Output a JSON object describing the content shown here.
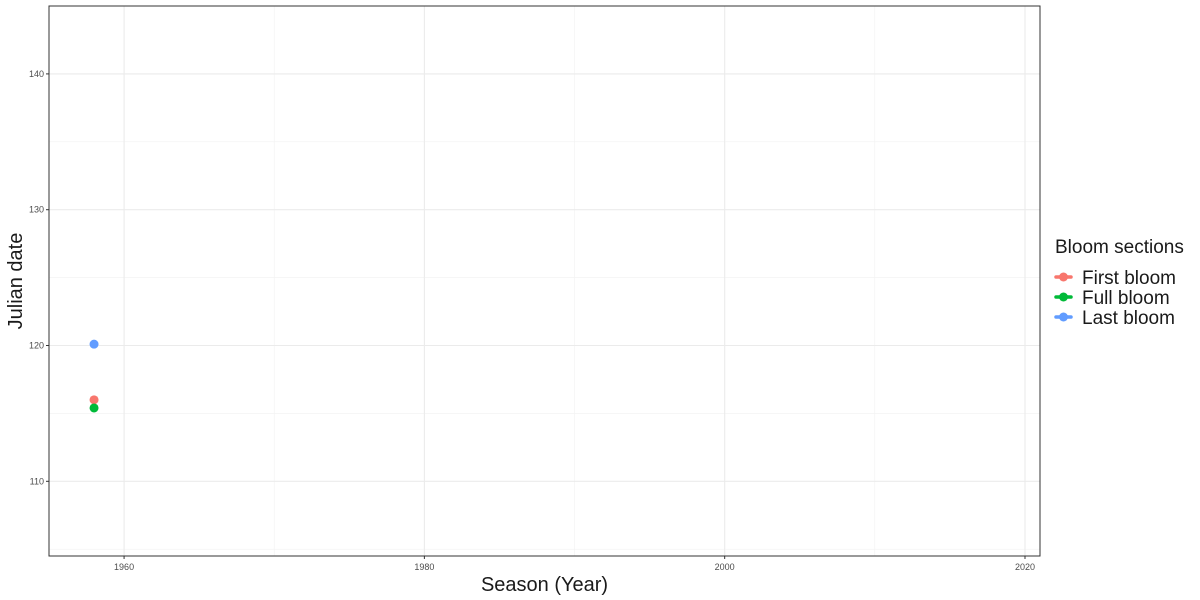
{
  "chart_data": {
    "type": "scatter",
    "title": "",
    "xlabel": "Season (Year)",
    "ylabel": "Julian date",
    "xlim": [
      1955,
      2021
    ],
    "ylim": [
      104.5,
      145
    ],
    "x_ticks": [
      1960,
      1980,
      2000,
      2020
    ],
    "y_ticks": [
      110,
      120,
      130,
      140
    ],
    "grid": true,
    "legend": {
      "title": "Bloom sections",
      "placement": "right"
    },
    "series": [
      {
        "name": "First bloom",
        "color": "#F8766D",
        "points": [
          {
            "x": 1958,
            "y": 116
          }
        ]
      },
      {
        "name": "Full bloom",
        "color": "#00BA38",
        "points": [
          {
            "x": 1958,
            "y": 115.4
          }
        ]
      },
      {
        "name": "Last bloom",
        "color": "#619CFF",
        "points": [
          {
            "x": 1958,
            "y": 120.1
          }
        ]
      }
    ]
  }
}
